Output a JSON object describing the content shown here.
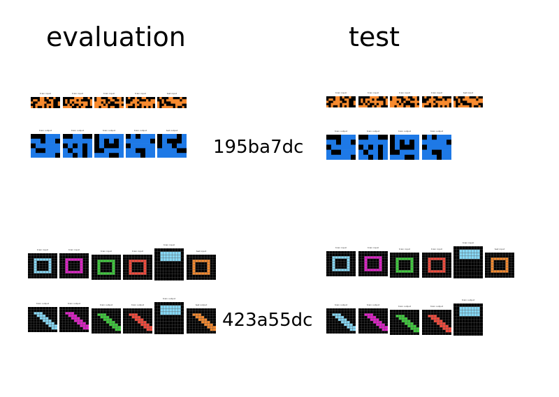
{
  "headings": {
    "evaluation": "evaluation",
    "test": "test"
  },
  "colors": {
    "black": "#000000",
    "orange": "#f78a2e",
    "blue": "#1e79e6",
    "cyan": "#86d8f5",
    "magenta": "#e021c8",
    "green": "#3fcb3d",
    "red": "#f44a3c",
    "grid_line": "#555555"
  },
  "tasks": [
    {
      "id": "195ba7dc",
      "evaluation": {
        "input_captions": [
          "train input",
          "train input",
          "train input",
          "train input",
          "test input"
        ],
        "output_captions": [
          "train output",
          "train output",
          "train output",
          "train output",
          "test output"
        ]
      },
      "test": {
        "input_captions": [
          "train input",
          "train input",
          "train input",
          "train input",
          "test input"
        ],
        "output_captions": [
          "train output",
          "train output",
          "train output",
          "train output"
        ]
      }
    },
    {
      "id": "423a55dc",
      "evaluation": {
        "input_captions": [
          "train input",
          "train input",
          "train input",
          "train input",
          "train input",
          "test input"
        ],
        "output_captions": [
          "train output",
          "train output",
          "train output",
          "train output",
          "train output",
          "test output"
        ]
      },
      "test": {
        "input_captions": [
          "train input",
          "train input",
          "train input",
          "train input",
          "train input",
          "test input"
        ],
        "output_captions": [
          "train output",
          "train output",
          "train output",
          "train output",
          "train output"
        ]
      }
    }
  ]
}
